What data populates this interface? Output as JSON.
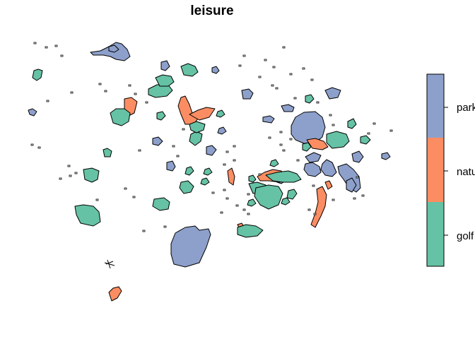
{
  "title": "leisure",
  "colors": {
    "golf": "#66C2A5",
    "nature": "#FC8D62",
    "park": "#8DA0CB"
  },
  "legend": {
    "items": [
      {
        "key": "park",
        "label": "park"
      },
      {
        "key": "nature",
        "label": "natu"
      },
      {
        "key": "golf",
        "label": "golf"
      }
    ]
  }
}
